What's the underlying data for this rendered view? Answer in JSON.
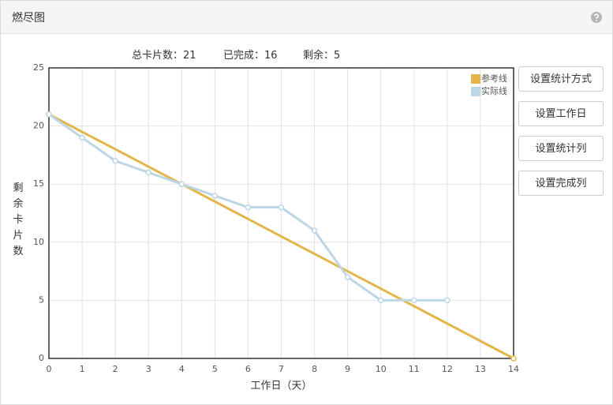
{
  "header": {
    "title": "燃尽图"
  },
  "summary": [
    {
      "label": "总卡片数：",
      "value": 21
    },
    {
      "label": "已完成：",
      "value": 16
    },
    {
      "label": "剩余：",
      "value": 5
    }
  ],
  "buttons": [
    "设置统计方式",
    "设置工作日",
    "设置统计列",
    "设置完成列"
  ],
  "chart_data": {
    "type": "line",
    "xlabel": "工作日（天）",
    "ylabel": "剩余卡片数",
    "xlim": [
      0,
      14
    ],
    "xticks": [
      0,
      1,
      2,
      3,
      4,
      5,
      6,
      7,
      8,
      9,
      10,
      11,
      12,
      13,
      14
    ],
    "ylim": [
      0,
      25
    ],
    "yticks": [
      0,
      5,
      10,
      15,
      20,
      25
    ],
    "grid": true,
    "legend": "upper right",
    "series": [
      {
        "name": "参考线",
        "color": "#e3b64c",
        "x": [
          0,
          14
        ],
        "values": [
          21,
          0
        ]
      },
      {
        "name": "实际线",
        "color": "#bdd6e6",
        "x": [
          0,
          1,
          2,
          3,
          4,
          5,
          6,
          7,
          8,
          9,
          10,
          11,
          12
        ],
        "values": [
          21,
          19,
          17,
          16,
          15,
          14,
          13,
          13,
          11,
          7,
          5,
          5,
          5
        ]
      }
    ]
  }
}
